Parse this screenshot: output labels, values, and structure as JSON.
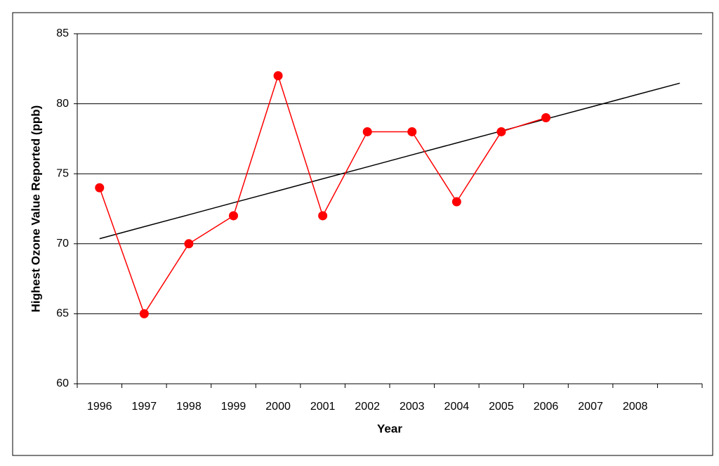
{
  "chart_data": {
    "type": "line",
    "x_label": "Year",
    "y_label": "Highest Ozone Value Reported (ppb)",
    "categories": [
      "1996",
      "1997",
      "1998",
      "1999",
      "2000",
      "2001",
      "2002",
      "2003",
      "2004",
      "2005",
      "2006",
      "2007",
      "2008",
      null
    ],
    "series": [
      {
        "color": "#ff0000",
        "values": [
          74,
          65,
          70,
          72,
          82,
          72,
          78,
          78,
          73,
          78,
          79,
          null,
          null,
          null
        ]
      }
    ],
    "trendline": {
      "color": "#000000",
      "values": [
        70.36,
        71.22,
        72.07,
        72.93,
        73.78,
        74.64,
        75.49,
        76.35,
        77.2,
        78.05,
        78.91,
        79.76,
        80.62,
        81.47
      ]
    },
    "ylim": [
      60,
      85
    ],
    "yticks": [
      60,
      65,
      70,
      75,
      80,
      85
    ],
    "grid": true
  }
}
